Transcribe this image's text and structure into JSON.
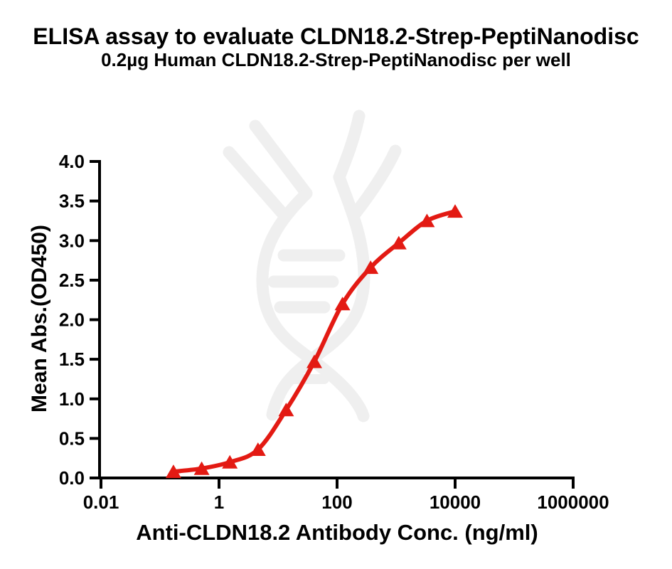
{
  "chart_data": {
    "type": "scatter-line",
    "title": "ELISA assay to evaluate CLDN18.2-Strep-PeptiNanodisc",
    "subtitle": "0.2µg Human CLDN18.2-Strep-PeptiNanodisc per well",
    "xlabel": "Anti-CLDN18.2 Antibody Conc. (ng/ml)",
    "ylabel": "Mean Abs.(OD450)",
    "x_scale": "log10",
    "xlim": [
      0.01,
      1000000
    ],
    "ylim": [
      0.0,
      4.0
    ],
    "grid": false,
    "legend": "none",
    "x_ticks": [
      {
        "value": 0.01,
        "label": "0.01"
      },
      {
        "value": 1,
        "label": "1"
      },
      {
        "value": 100,
        "label": "100"
      },
      {
        "value": 10000,
        "label": "10000"
      },
      {
        "value": 1000000,
        "label": "1000000"
      }
    ],
    "y_ticks": [
      {
        "value": 0.0,
        "label": "0.0"
      },
      {
        "value": 0.5,
        "label": "0.5"
      },
      {
        "value": 1.0,
        "label": "1.0"
      },
      {
        "value": 1.5,
        "label": "1.5"
      },
      {
        "value": 2.0,
        "label": "2.0"
      },
      {
        "value": 2.5,
        "label": "2.5"
      },
      {
        "value": 3.0,
        "label": "3.0"
      },
      {
        "value": 3.5,
        "label": "3.5"
      },
      {
        "value": 4.0,
        "label": "4.0"
      }
    ],
    "series": [
      {
        "marker": "triangle-up",
        "color": "#e31a13",
        "curve": "4PL-sigmoid-fit",
        "points": [
          {
            "x": 0.169,
            "y": 0.08
          },
          {
            "x": 0.508,
            "y": 0.12
          },
          {
            "x": 1.524,
            "y": 0.2
          },
          {
            "x": 4.572,
            "y": 0.36
          },
          {
            "x": 13.717,
            "y": 0.86
          },
          {
            "x": 41.152,
            "y": 1.47
          },
          {
            "x": 123.457,
            "y": 2.2
          },
          {
            "x": 370.37,
            "y": 2.66
          },
          {
            "x": 1111.111,
            "y": 2.97
          },
          {
            "x": 3333.333,
            "y": 3.25
          },
          {
            "x": 10000,
            "y": 3.37
          }
        ]
      }
    ]
  },
  "colors": {
    "curve": "#e31a13",
    "axis": "#000000",
    "text": "#000000",
    "watermark": "#efefef",
    "background": "#ffffff"
  },
  "icons": {
    "watermark": "dna-helix-antibody-watermark"
  }
}
